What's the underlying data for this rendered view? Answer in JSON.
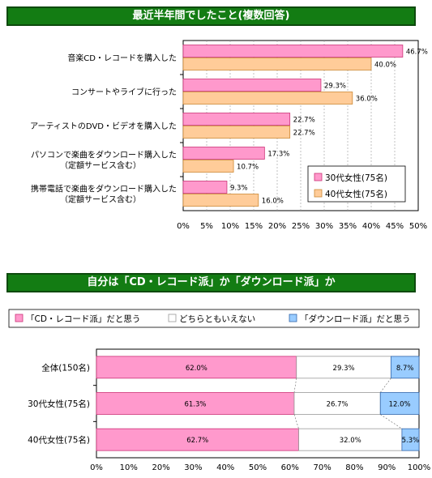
{
  "colors": {
    "banner": "#137c13",
    "pink": "#ff99cc",
    "pink_stroke": "#cc3377",
    "orange": "#ffcc99",
    "orange_stroke": "#cc8833",
    "blue": "#99ccff",
    "blue_stroke": "#3366aa",
    "white_seg": "#ffffff"
  },
  "chart_data": [
    {
      "type": "bar",
      "title": "最近半年間でしたこと(複数回答)",
      "orientation": "horizontal",
      "categories": [
        [
          "音楽CD・レコードを購入した"
        ],
        [
          "コンサートやライブに行った"
        ],
        [
          "アーティストのDVD・ビデオを購入した"
        ],
        [
          "パソコンで楽曲をダウンロード購入した",
          "（定額サービス含む）"
        ],
        [
          "携帯電話で楽曲をダウンロード購入した",
          "（定額サービス含む）"
        ]
      ],
      "series": [
        {
          "name": "30代女性(75名)",
          "values": [
            46.7,
            29.3,
            22.7,
            17.3,
            9.3
          ],
          "labels": [
            "46.7%",
            "29.3%",
            "22.7%",
            "17.3%",
            "9.3%"
          ]
        },
        {
          "name": "40代女性(75名)",
          "values": [
            40.0,
            36.0,
            22.7,
            10.7,
            16.0
          ],
          "labels": [
            "40.0%",
            "36.0%",
            "22.7%",
            "10.7%",
            "16.0%"
          ]
        }
      ],
      "xlim": [
        0,
        50
      ],
      "xticks": [
        "0%",
        "5%",
        "10%",
        "15%",
        "20%",
        "25%",
        "30%",
        "35%",
        "40%",
        "45%",
        "50%"
      ],
      "legend_position": "inside lower-right"
    },
    {
      "type": "bar",
      "stacked": true,
      "title": "自分は「CD・レコード派」か「ダウンロード派」か",
      "orientation": "horizontal",
      "categories": [
        "全体(150名)",
        "30代女性(75名)",
        "40代女性(75名)"
      ],
      "series": [
        {
          "name": "「CD・レコード派」だと思う",
          "values": [
            62.0,
            61.3,
            62.7
          ],
          "labels": [
            "62.0%",
            "61.3%",
            "62.7%"
          ]
        },
        {
          "name": "どちらともいえない",
          "values": [
            29.3,
            26.7,
            32.0
          ],
          "labels": [
            "29.3%",
            "26.7%",
            "32.0%"
          ]
        },
        {
          "name": "「ダウンロード派」だと思う",
          "values": [
            8.7,
            12.0,
            5.3
          ],
          "labels": [
            "8.7%",
            "12.0%",
            "5.3%"
          ]
        }
      ],
      "xlim": [
        0,
        100
      ],
      "xticks": [
        "0%",
        "10%",
        "20%",
        "30%",
        "40%",
        "50%",
        "60%",
        "70%",
        "80%",
        "90%",
        "100%"
      ],
      "legend_position": "top"
    }
  ]
}
